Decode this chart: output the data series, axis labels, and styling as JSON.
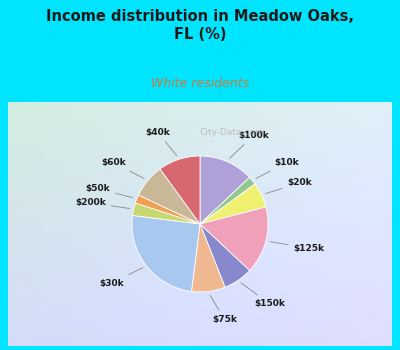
{
  "title": "Income distribution in Meadow Oaks,\nFL (%)",
  "subtitle": "White residents",
  "title_color": "#1a1a1a",
  "subtitle_color": "#c87840",
  "background_color": "#00e5ff",
  "watermark": "City-Data.com",
  "labels": [
    "$100k",
    "$10k",
    "$20k",
    "$125k",
    "$150k",
    "$75k",
    "$30k",
    "$200k",
    "$50k",
    "$60k",
    "$40k"
  ],
  "sizes": [
    13,
    2,
    6,
    16,
    7,
    8,
    25,
    3,
    2,
    8,
    10
  ],
  "colors": [
    "#b0a0d8",
    "#90c890",
    "#f0f070",
    "#f0a0b8",
    "#8888cc",
    "#f0b890",
    "#a8c8f0",
    "#c8d870",
    "#f0a050",
    "#c8b898",
    "#d86870"
  ],
  "startangle": 90
}
